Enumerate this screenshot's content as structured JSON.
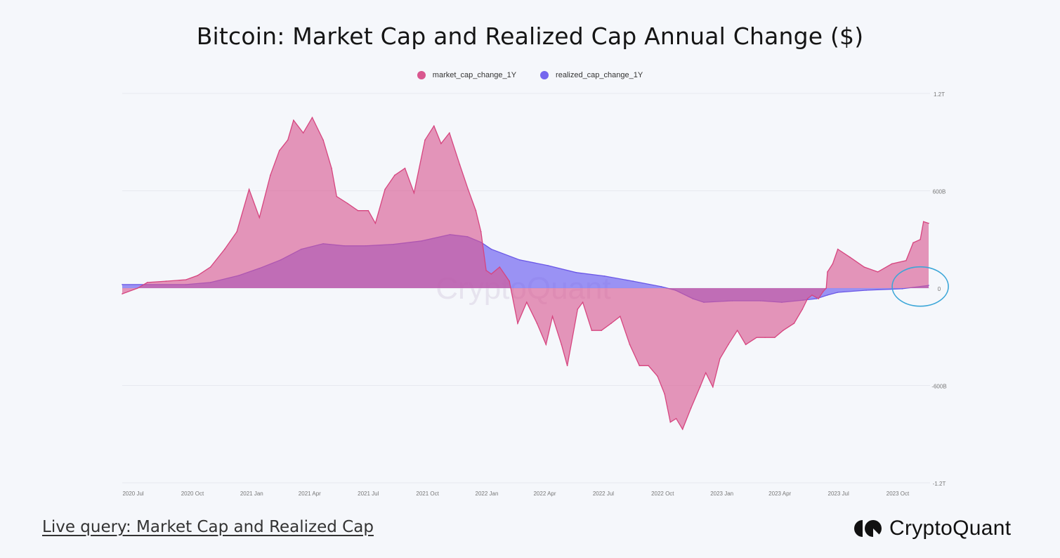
{
  "title": "Bitcoin: Market Cap and Realized Cap Annual Change ($)",
  "footer": {
    "link_text": "Live query: Market Cap and Realized Cap",
    "brand": "CryptoQuant"
  },
  "watermark": "CryptoQuant",
  "colors": {
    "market_cap": "#d9578f",
    "realized_cap": "#7466ee",
    "annotation": "#3aa6d8"
  },
  "chart_data": {
    "type": "area",
    "title": "Bitcoin: Market Cap and Realized Cap Annual Change ($)",
    "legend_position": "top",
    "grid": true,
    "y_axis_position": "right",
    "ylim": [
      -1200,
      1200
    ],
    "y_unit": "billions USD",
    "y_ticks": [
      {
        "value": 1200,
        "label": "1.2T"
      },
      {
        "value": 600,
        "label": "600B"
      },
      {
        "value": 0,
        "label": "0"
      },
      {
        "value": -600,
        "label": "-600B"
      },
      {
        "value": -1200,
        "label": "-1.2T"
      }
    ],
    "x_ticks": [
      {
        "date": "2020-07-01",
        "label": "2020 Jul"
      },
      {
        "date": "2020-10-01",
        "label": "2020 Oct"
      },
      {
        "date": "2021-01-01",
        "label": "2021 Jan"
      },
      {
        "date": "2021-04-01",
        "label": "2021 Apr"
      },
      {
        "date": "2021-07-01",
        "label": "2021 Jul"
      },
      {
        "date": "2021-10-01",
        "label": "2021 Oct"
      },
      {
        "date": "2022-01-01",
        "label": "2022 Jan"
      },
      {
        "date": "2022-04-01",
        "label": "2022 Apr"
      },
      {
        "date": "2022-07-01",
        "label": "2022 Jul"
      },
      {
        "date": "2022-10-01",
        "label": "2022 Oct"
      },
      {
        "date": "2023-01-01",
        "label": "2023 Jan"
      },
      {
        "date": "2023-04-01",
        "label": "2023 Apr"
      },
      {
        "date": "2023-07-01",
        "label": "2023 Jul"
      },
      {
        "date": "2023-10-01",
        "label": "2023 Oct"
      }
    ],
    "xlim": [
      "2020-06-14",
      "2023-11-18"
    ],
    "series": [
      {
        "name": "market_cap_change_1Y",
        "color": "#d9578f",
        "points": [
          [
            "2020-06-14",
            -35
          ],
          [
            "2020-07-08",
            0
          ],
          [
            "2020-07-23",
            35
          ],
          [
            "2020-08-21",
            43
          ],
          [
            "2020-09-21",
            52
          ],
          [
            "2020-10-09",
            78
          ],
          [
            "2020-10-29",
            130
          ],
          [
            "2020-11-20",
            240
          ],
          [
            "2020-12-09",
            348
          ],
          [
            "2020-12-28",
            609
          ],
          [
            "2021-01-13",
            435
          ],
          [
            "2021-01-30",
            696
          ],
          [
            "2021-02-13",
            848
          ],
          [
            "2021-02-26",
            913
          ],
          [
            "2021-03-07",
            1035
          ],
          [
            "2021-03-22",
            957
          ],
          [
            "2021-04-05",
            1052
          ],
          [
            "2021-04-22",
            913
          ],
          [
            "2021-05-05",
            739
          ],
          [
            "2021-05-13",
            565
          ],
          [
            "2021-05-30",
            522
          ],
          [
            "2021-06-15",
            478
          ],
          [
            "2021-07-01",
            478
          ],
          [
            "2021-07-12",
            400
          ],
          [
            "2021-07-27",
            609
          ],
          [
            "2021-08-11",
            696
          ],
          [
            "2021-08-27",
            739
          ],
          [
            "2021-09-10",
            587
          ],
          [
            "2021-09-27",
            913
          ],
          [
            "2021-10-11",
            1000
          ],
          [
            "2021-10-22",
            891
          ],
          [
            "2021-11-04",
            957
          ],
          [
            "2021-11-20",
            761
          ],
          [
            "2021-12-03",
            609
          ],
          [
            "2021-12-15",
            478
          ],
          [
            "2021-12-23",
            348
          ],
          [
            "2021-12-31",
            109
          ],
          [
            "2022-01-08",
            87
          ],
          [
            "2022-01-21",
            130
          ],
          [
            "2022-02-05",
            43
          ],
          [
            "2022-02-18",
            -217
          ],
          [
            "2022-03-04",
            -87
          ],
          [
            "2022-03-20",
            -217
          ],
          [
            "2022-04-03",
            -348
          ],
          [
            "2022-04-13",
            -174
          ],
          [
            "2022-04-27",
            -348
          ],
          [
            "2022-05-06",
            -478
          ],
          [
            "2022-05-22",
            -130
          ],
          [
            "2022-05-30",
            -87
          ],
          [
            "2022-06-13",
            -261
          ],
          [
            "2022-06-28",
            -261
          ],
          [
            "2022-07-13",
            -217
          ],
          [
            "2022-07-27",
            -174
          ],
          [
            "2022-08-11",
            -348
          ],
          [
            "2022-08-26",
            -478
          ],
          [
            "2022-09-09",
            -478
          ],
          [
            "2022-09-23",
            -543
          ],
          [
            "2022-10-04",
            -652
          ],
          [
            "2022-10-13",
            -826
          ],
          [
            "2022-10-22",
            -804
          ],
          [
            "2022-11-01",
            -870
          ],
          [
            "2022-11-14",
            -739
          ],
          [
            "2022-11-28",
            -609
          ],
          [
            "2022-12-07",
            -522
          ],
          [
            "2022-12-18",
            -609
          ],
          [
            "2022-12-29",
            -435
          ],
          [
            "2023-01-11",
            -348
          ],
          [
            "2023-01-25",
            -261
          ],
          [
            "2023-02-07",
            -348
          ],
          [
            "2023-02-24",
            -304
          ],
          [
            "2023-03-09",
            -304
          ],
          [
            "2023-03-24",
            -304
          ],
          [
            "2023-04-06",
            -261
          ],
          [
            "2023-04-23",
            -217
          ],
          [
            "2023-05-06",
            -130
          ],
          [
            "2023-05-14",
            -65
          ],
          [
            "2023-05-21",
            -43
          ],
          [
            "2023-05-31",
            -65
          ],
          [
            "2023-06-07",
            -22
          ],
          [
            "2023-06-12",
            0
          ],
          [
            "2023-06-14",
            100
          ],
          [
            "2023-06-22",
            150
          ],
          [
            "2023-06-30",
            240
          ],
          [
            "2023-07-19",
            190
          ],
          [
            "2023-08-10",
            130
          ],
          [
            "2023-08-31",
            100
          ],
          [
            "2023-09-22",
            150
          ],
          [
            "2023-10-14",
            170
          ],
          [
            "2023-10-25",
            280
          ],
          [
            "2023-11-05",
            300
          ],
          [
            "2023-11-10",
            410
          ],
          [
            "2023-11-18",
            400
          ]
        ]
      },
      {
        "name": "realized_cap_change_1Y",
        "color": "#7466ee",
        "points": [
          [
            "2020-06-14",
            22
          ],
          [
            "2020-09-21",
            22
          ],
          [
            "2020-10-29",
            35
          ],
          [
            "2020-12-12",
            78
          ],
          [
            "2021-01-13",
            122
          ],
          [
            "2021-02-15",
            174
          ],
          [
            "2021-03-19",
            240
          ],
          [
            "2021-04-22",
            274
          ],
          [
            "2021-05-25",
            261
          ],
          [
            "2021-06-27",
            261
          ],
          [
            "2021-08-09",
            270
          ],
          [
            "2021-09-22",
            291
          ],
          [
            "2021-11-05",
            330
          ],
          [
            "2021-12-02",
            317
          ],
          [
            "2021-12-23",
            283
          ],
          [
            "2022-01-08",
            240
          ],
          [
            "2022-02-21",
            174
          ],
          [
            "2022-04-06",
            139
          ],
          [
            "2022-05-20",
            96
          ],
          [
            "2022-07-03",
            74
          ],
          [
            "2022-08-16",
            43
          ],
          [
            "2022-09-29",
            9
          ],
          [
            "2022-10-21",
            -13
          ],
          [
            "2022-11-17",
            -65
          ],
          [
            "2022-12-04",
            -87
          ],
          [
            "2023-01-17",
            -78
          ],
          [
            "2023-03-02",
            -78
          ],
          [
            "2023-04-04",
            -87
          ],
          [
            "2023-05-07",
            -74
          ],
          [
            "2023-05-28",
            -65
          ],
          [
            "2023-06-14",
            -43
          ],
          [
            "2023-06-30",
            -26
          ],
          [
            "2023-08-13",
            -13
          ],
          [
            "2023-10-08",
            -4
          ],
          [
            "2023-11-18",
            17
          ]
        ]
      }
    ],
    "annotations": [
      {
        "type": "ellipse",
        "date": "2023-11-05",
        "value": 10,
        "color": "#3aa6d8"
      }
    ]
  }
}
